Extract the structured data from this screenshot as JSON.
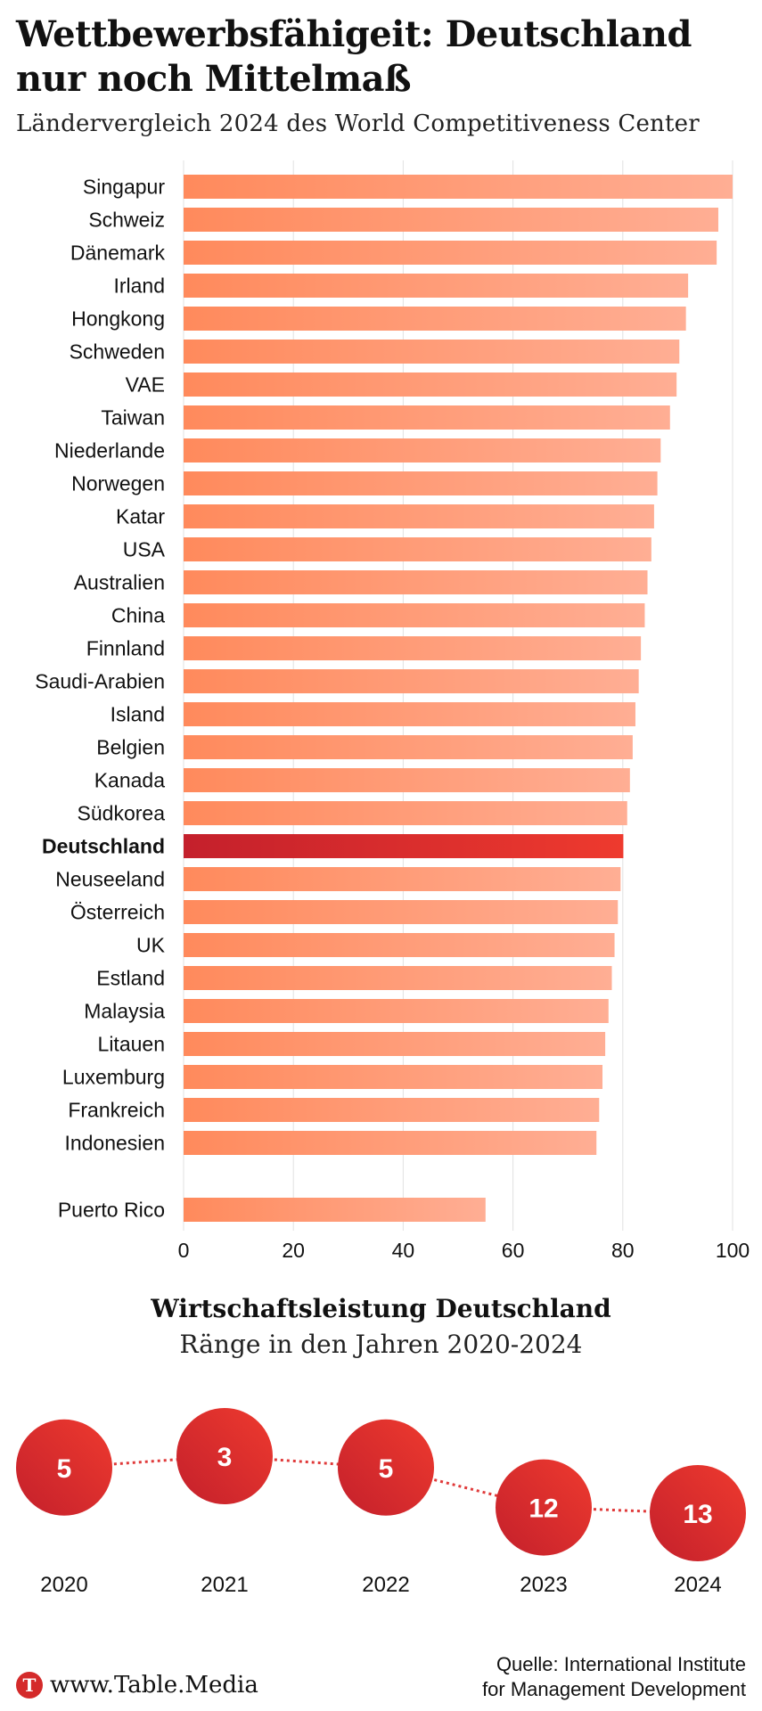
{
  "title": "Wettbewerbsfähigeit: Deutschland nur noch Mittelmaß",
  "subtitle": "Ländervergleich 2024 des World Competitiveness Center",
  "chart_data": [
    {
      "type": "bar",
      "orientation": "horizontal",
      "title": "",
      "xlim": [
        0,
        100
      ],
      "x_ticks": [
        0,
        20,
        40,
        60,
        80,
        100
      ],
      "grid": true,
      "highlight": "Deutschland",
      "categories": [
        "Singapur",
        "Schweiz",
        "Dänemark",
        "Irland",
        "Hongkong",
        "Schweden",
        "VAE",
        "Taiwan",
        "Niederlande",
        "Norwegen",
        "Katar",
        "USA",
        "Australien",
        "China",
        "Finnland",
        "Saudi-Arabien",
        "Island",
        "Belgien",
        "Kanada",
        "Südkorea",
        "Deutschland",
        "Neuseeland",
        "Österreich",
        "UK",
        "Estland",
        "Malaysia",
        "Litauen",
        "Luxemburg",
        "Frankreich",
        "Indonesien",
        "Puerto Rico"
      ],
      "values": [
        100,
        97.4,
        97.1,
        91.9,
        91.5,
        90.3,
        89.8,
        88.6,
        86.9,
        86.3,
        85.7,
        85.2,
        84.5,
        84,
        83.3,
        82.9,
        82.3,
        81.8,
        81.3,
        80.8,
        80.1,
        79.6,
        79.1,
        78.5,
        78,
        77.4,
        76.8,
        76.3,
        75.7,
        75.2,
        55
      ]
    },
    {
      "type": "line",
      "title": "Wirtschaftsleistung Deutschland",
      "subtitle": "Ränge in den Jahren 2020-2024",
      "x": [
        "2020",
        "2021",
        "2022",
        "2023",
        "2024"
      ],
      "y": [
        5,
        3,
        5,
        12,
        13
      ],
      "y_axis": "inverted rank, no axis shown"
    }
  ],
  "colors": {
    "bar_start": "#ff8a5c",
    "bar_end": "#ffae94",
    "highlight_start": "#c4202c",
    "highlight_end": "#ee3a2e",
    "grid": "#e2e2e2",
    "dotted_line": "#e03a3a"
  },
  "footer": {
    "logo_letter": "T",
    "site": "www.Table.Media",
    "source_line1": "Quelle: International Institute",
    "source_line2": "for Management Development"
  }
}
